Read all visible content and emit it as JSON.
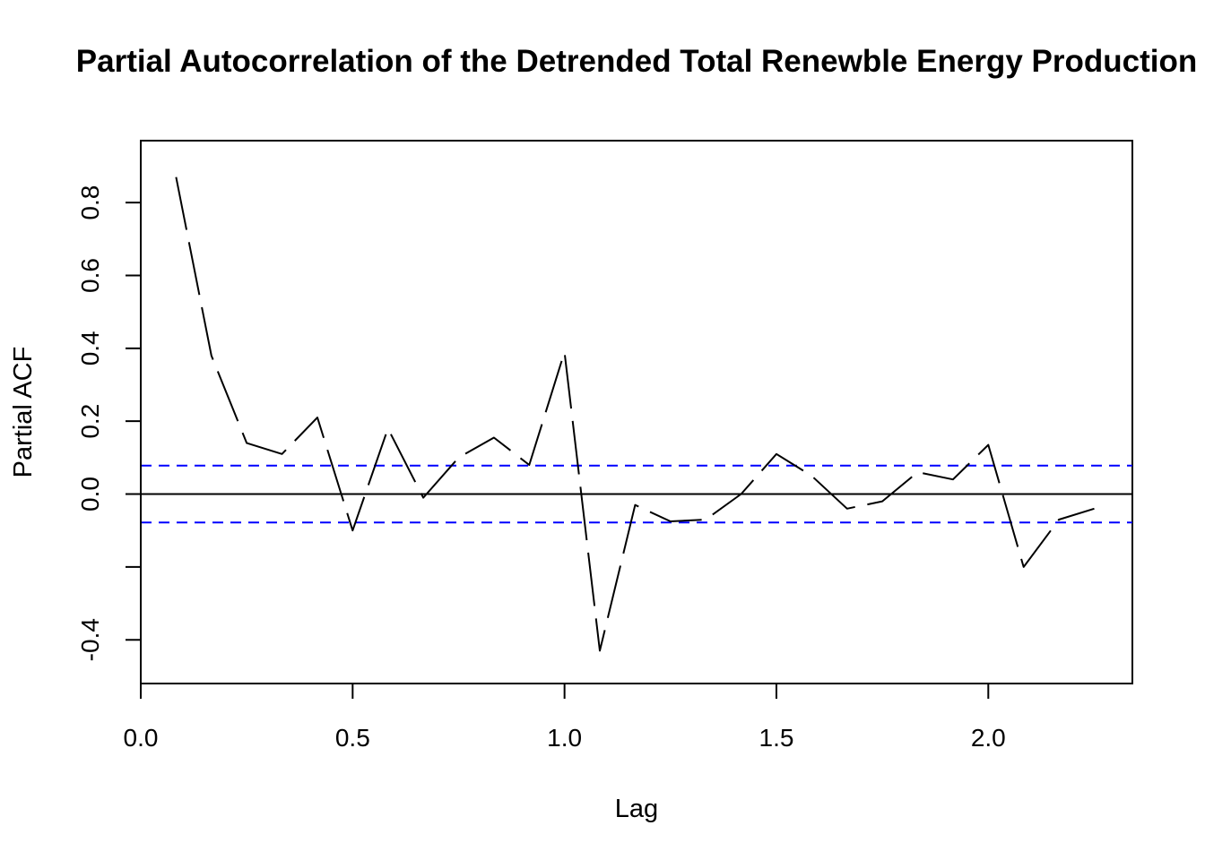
{
  "chart_data": {
    "type": "line",
    "title": "Partial Autocorrelation of the Detrended Total Renewble Energy Production",
    "xlabel": "Lag",
    "ylabel": "Partial ACF",
    "xlim": [
      0,
      2.34
    ],
    "ylim": [
      -0.52,
      0.97
    ],
    "x_ticks": [
      0.0,
      0.5,
      1.0,
      1.5,
      2.0
    ],
    "x_tick_labels": [
      "0.0",
      "0.5",
      "1.0",
      "1.5",
      "2.0"
    ],
    "y_ticks": [
      -0.4,
      -0.2,
      0.0,
      0.2,
      0.4,
      0.6,
      0.8
    ],
    "y_tick_labels": [
      "-0.4",
      "",
      "0.0",
      "0.2",
      "0.4",
      "0.6",
      "0.8"
    ],
    "lags": [
      0.0833,
      0.1667,
      0.25,
      0.3333,
      0.4167,
      0.5,
      0.5833,
      0.6667,
      0.75,
      0.8333,
      0.9167,
      1.0,
      1.0833,
      1.1667,
      1.25,
      1.3333,
      1.4167,
      1.5,
      1.5833,
      1.6667,
      1.75,
      1.8333,
      1.9167,
      2.0,
      2.0833,
      2.1667,
      2.25
    ],
    "values": [
      0.87,
      0.38,
      0.14,
      0.11,
      0.21,
      -0.1,
      0.18,
      -0.01,
      0.1,
      0.155,
      0.08,
      0.39,
      -0.43,
      -0.03,
      -0.075,
      -0.07,
      0.0,
      0.11,
      0.05,
      -0.04,
      -0.02,
      0.06,
      0.04,
      0.135,
      -0.2,
      -0.07,
      -0.04
    ],
    "confidence_bound": 0.078,
    "line_color": "#000000",
    "ci_color": "#0000ff",
    "line_style": "dashed",
    "grid": false
  }
}
